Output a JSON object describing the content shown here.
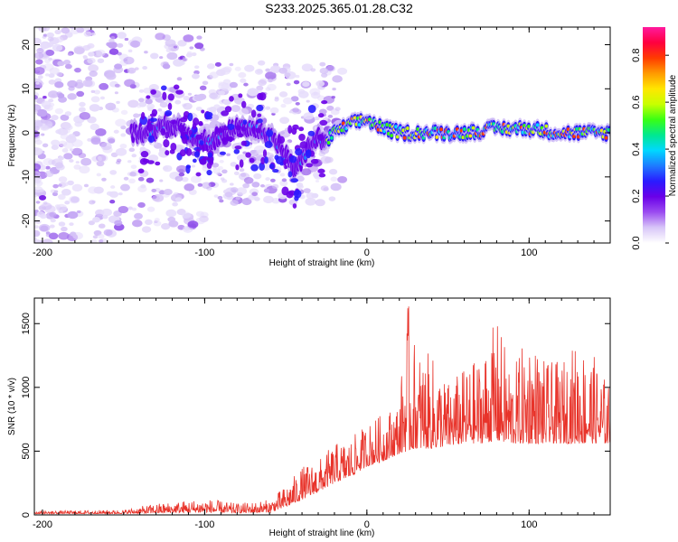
{
  "title": "S233.2025.365.01.28.C32",
  "chart_data": [
    {
      "type": "heatmap",
      "xlabel": "Height of straight line (km)",
      "ylabel": "Frequency (Hz)",
      "xlim": [
        -205,
        150
      ],
      "ylim": [
        -25,
        24
      ],
      "xticks": [
        -200,
        -100,
        0,
        100
      ],
      "yticks": [
        -20,
        -10,
        0,
        10,
        20
      ],
      "colorbar": {
        "label": "Normalized spectral amplitude",
        "lim": [
          0,
          0.92
        ],
        "ticks": [
          0.0,
          0.2,
          0.4,
          0.6,
          0.8
        ],
        "tick_labels": [
          "0.0",
          "0.2",
          "0.4",
          "0.6",
          "0.8"
        ],
        "colors": [
          "#ffffff",
          "#d8c6f8",
          "#9b4cf0",
          "#6a00e8",
          "#2a1bff",
          "#1e7bff",
          "#00d8ff",
          "#00e890",
          "#39ff14",
          "#c8ff00",
          "#ffe600",
          "#ff9a00",
          "#ff3b00",
          "#ff0040",
          "#ff1a9e"
        ]
      },
      "ridge": {
        "description_points_x": [
          -140,
          -120,
          -100,
          -80,
          -60,
          -45,
          -30,
          -25,
          -20,
          -10,
          0,
          10,
          20,
          40,
          60,
          80,
          100,
          120,
          140,
          150
        ],
        "description_points_y": [
          0,
          2,
          -2,
          1,
          0,
          -8,
          -1,
          -2,
          0,
          2,
          3,
          1,
          0,
          0,
          0,
          1,
          1,
          0,
          0,
          0
        ]
      }
    },
    {
      "type": "line",
      "xlabel": "Height of straight line (km)",
      "ylabel": "SNR (10 * v/v)",
      "xlim": [
        -205,
        150
      ],
      "ylim": [
        0,
        1700
      ],
      "xticks": [
        -200,
        -100,
        0,
        100
      ],
      "yticks": [
        0,
        500,
        1000,
        1500
      ],
      "series": [
        {
          "name": "SNR",
          "color": "#e8332a",
          "envelope_x": [
            -205,
            -150,
            -130,
            -100,
            -80,
            -60,
            -50,
            -40,
            -30,
            -20,
            -10,
            0,
            10,
            20,
            25,
            30,
            40,
            50,
            60,
            70,
            80,
            90,
            100,
            110,
            120,
            130,
            140,
            150
          ],
          "envelope_y": [
            30,
            40,
            90,
            130,
            90,
            120,
            230,
            380,
            430,
            560,
            600,
            720,
            800,
            900,
            1700,
            1320,
            1250,
            1050,
            1150,
            1250,
            1540,
            1150,
            1450,
            1200,
            1200,
            1380,
            1250,
            1000
          ],
          "baseline_y": [
            10,
            10,
            15,
            20,
            15,
            20,
            60,
            120,
            180,
            250,
            300,
            380,
            420,
            480,
            500,
            520,
            520,
            540,
            560,
            560,
            580,
            560,
            560,
            560,
            560,
            560,
            560,
            560
          ]
        }
      ]
    }
  ]
}
